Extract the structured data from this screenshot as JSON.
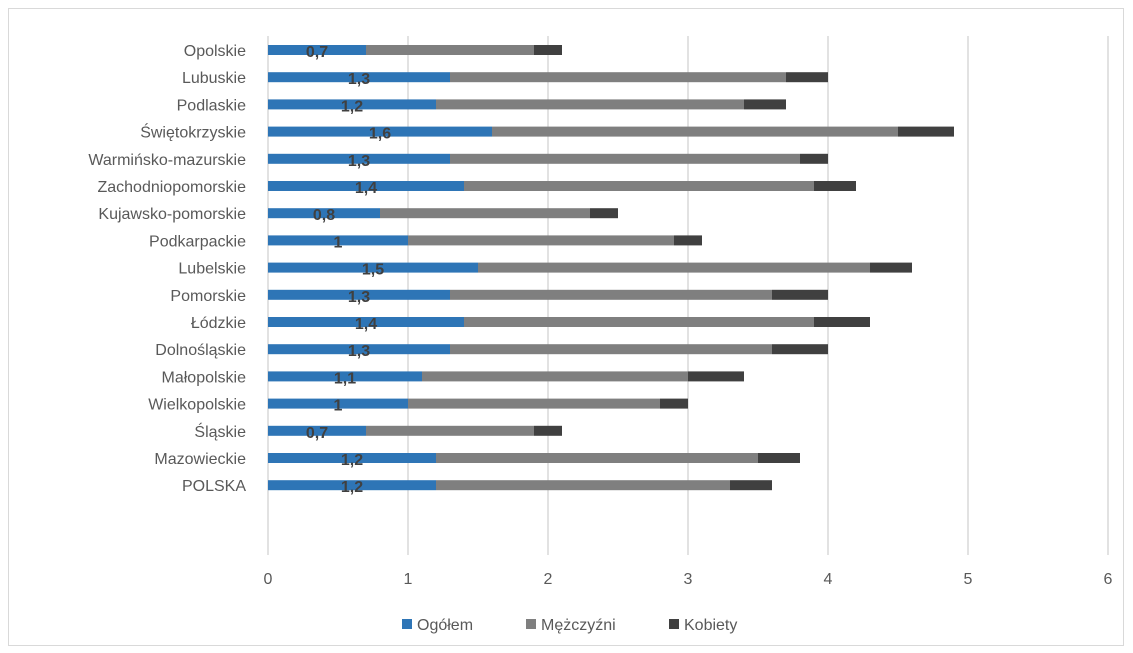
{
  "chart_data": {
    "type": "bar",
    "orientation": "horizontal",
    "stacked": true,
    "categories": [
      "Opolskie",
      "Lubuskie",
      "Podlaskie",
      "Świętokrzyskie",
      "Warmińsko-mazurskie",
      "Zachodniopomorskie",
      "Kujawsko-pomorskie",
      "Podkarpackie",
      "Lubelskie",
      "Pomorskie",
      "Łódzkie",
      "Dolnośląskie",
      "Małopolskie",
      "Wielkopolskie",
      "Śląskie",
      "Mazowieckie",
      "POLSKA"
    ],
    "series": [
      {
        "name": "Ogółem",
        "color": "#2e75b6",
        "values": [
          0.7,
          1.3,
          1.2,
          1.6,
          1.3,
          1.4,
          0.8,
          1.0,
          1.5,
          1.3,
          1.4,
          1.3,
          1.1,
          1.0,
          0.7,
          1.2,
          1.2
        ]
      },
      {
        "name": "Mężczyźni",
        "color": "#7f7f7f",
        "values": [
          1.2,
          2.4,
          2.2,
          2.9,
          2.5,
          2.5,
          1.5,
          1.9,
          2.8,
          2.3,
          2.5,
          2.3,
          1.9,
          1.8,
          1.2,
          2.3,
          2.1
        ]
      },
      {
        "name": "Kobiety",
        "color": "#404040",
        "values": [
          0.2,
          0.3,
          0.3,
          0.4,
          0.2,
          0.3,
          0.2,
          0.2,
          0.3,
          0.4,
          0.4,
          0.4,
          0.4,
          0.2,
          0.2,
          0.3,
          0.3
        ]
      }
    ],
    "data_labels": [
      "0,7",
      "1,3",
      "1,2",
      "1,6",
      "1,3",
      "1,4",
      "0,8",
      "1",
      "1,5",
      "1,3",
      "1,4",
      "1,3",
      "1,1",
      "1",
      "0,7",
      "1,2",
      "1,2"
    ],
    "x_ticks": [
      "0",
      "1",
      "2",
      "3",
      "4",
      "5",
      "6"
    ],
    "xlim": [
      0,
      6
    ],
    "grid": "vertical",
    "legend_position": "bottom",
    "title": "",
    "xlabel": "",
    "ylabel": ""
  }
}
